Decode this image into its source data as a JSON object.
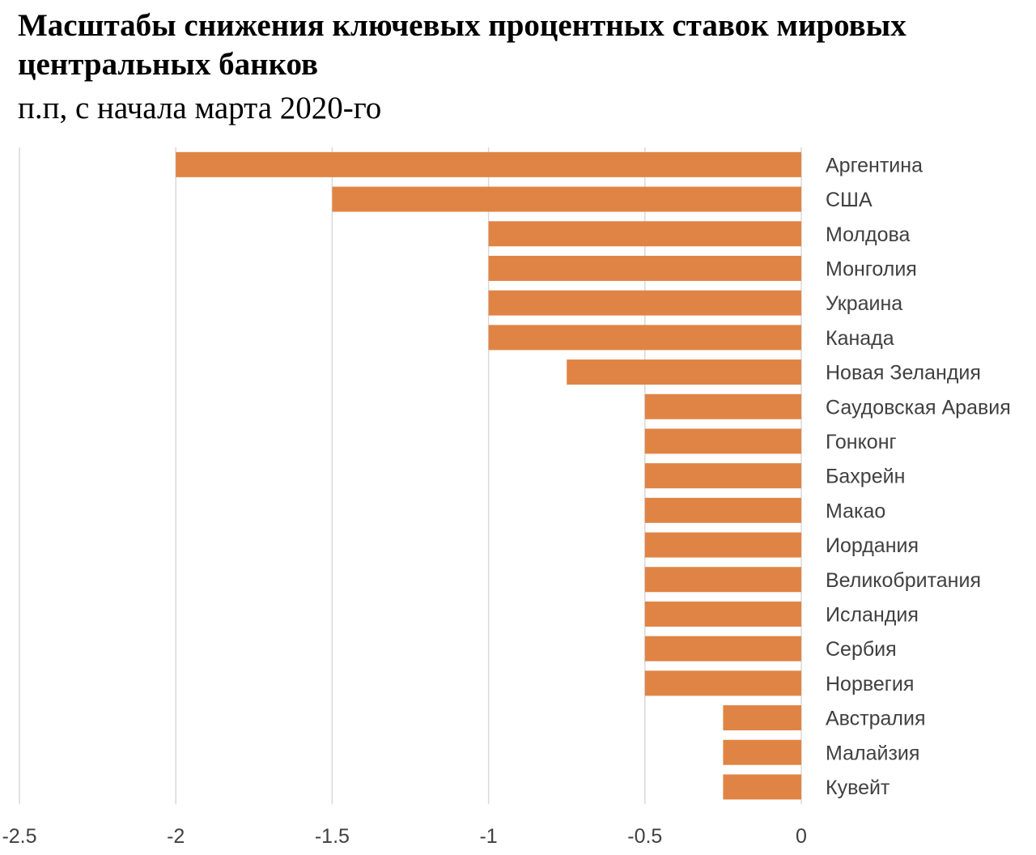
{
  "header": {
    "title": "Масштабы снижения ключевых процентных ставок мировых центральных банков",
    "subtitle": "п.п, с начала марта 2020-го"
  },
  "colors": {
    "bar": "#E08445",
    "grid": "#d9d9d9",
    "text": "#404040"
  },
  "chart_data": {
    "type": "bar",
    "orientation": "horizontal",
    "title": "Масштабы снижения ключевых процентных ставок мировых центральных банков",
    "subtitle": "п.п, с начала марта 2020-го",
    "xlabel": "",
    "ylabel": "",
    "xlim": [
      -2.5,
      0
    ],
    "x_ticks": [
      -2.5,
      -2,
      -1.5,
      -1,
      -0.5,
      0
    ],
    "x_tick_labels": [
      "-2.5",
      "-2",
      "-1.5",
      "-1",
      "-0.5",
      "0"
    ],
    "category_label_position": "right",
    "grid": "vertical",
    "legend": "none",
    "categories": [
      "Аргентина",
      "США",
      "Молдова",
      "Монголия",
      "Украина",
      "Канада",
      "Новая Зеландия",
      "Саудовская Аравия",
      "Гонконг",
      "Бахрейн",
      "Макао",
      "Иордания",
      "Великобритания",
      "Исландия",
      "Сербия",
      "Норвегия",
      "Австралия",
      "Малайзия",
      "Кувейт"
    ],
    "values": [
      -2,
      -1.5,
      -1,
      -1,
      -1,
      -1,
      -0.75,
      -0.5,
      -0.5,
      -0.5,
      -0.5,
      -0.5,
      -0.5,
      -0.5,
      -0.5,
      -0.5,
      -0.25,
      -0.25,
      -0.25
    ]
  }
}
